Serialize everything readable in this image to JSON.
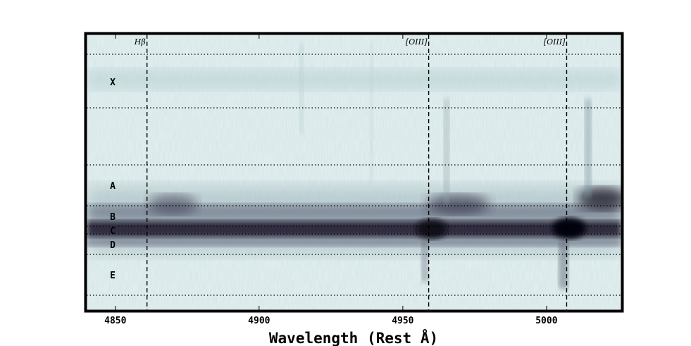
{
  "chart_data": {
    "type": "heatmap",
    "title": "",
    "xlabel": "Wavelength (Rest Å)",
    "ylabel": "",
    "xlim": [
      4840,
      5026
    ],
    "x_ticks": [
      4850,
      4900,
      4950,
      5000
    ],
    "grid": false,
    "colormap": "bone_r",
    "emission_lines": [
      {
        "name": "Hβ",
        "wavelength": 4861
      },
      {
        "name": "[OIII]",
        "wavelength": 4959
      },
      {
        "name": "[OIII]",
        "wavelength": 5007
      }
    ],
    "regions": [
      "X",
      "A",
      "B",
      "C",
      "D",
      "E"
    ],
    "region_boundaries": [
      "top",
      "X-bottom",
      "A-top",
      "A-B",
      "C",
      "C-D",
      "D-E",
      "E-bottom"
    ]
  }
}
